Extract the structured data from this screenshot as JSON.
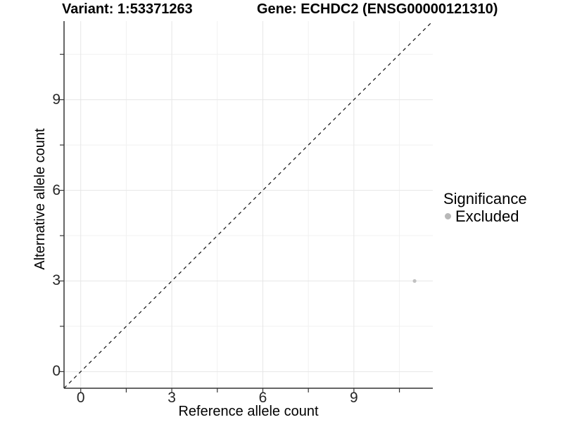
{
  "titles": {
    "variant": "Variant: 1:53371263",
    "gene": "Gene: ECHDC2 (ENSG00000121310)"
  },
  "chart_data": {
    "type": "scatter",
    "xlabel": "Reference allele count",
    "ylabel": "Alternative allele count",
    "xlim": [
      -0.55,
      11.6
    ],
    "ylim": [
      -0.55,
      11.6
    ],
    "x_major_ticks": [
      0,
      3,
      6,
      9
    ],
    "y_major_ticks": [
      0,
      3,
      6,
      9
    ],
    "x_minor_ticks": [
      1.5,
      4.5,
      7.5,
      10.5
    ],
    "y_minor_ticks": [
      1.5,
      4.5,
      7.5,
      10.5
    ],
    "grid": true,
    "reference_line": {
      "type": "identity",
      "style": "dashed",
      "color": "#111111"
    },
    "series": [
      {
        "name": "Excluded",
        "color": "#c2c2c2",
        "points": [
          {
            "x": 11,
            "y": 3
          }
        ]
      }
    ],
    "legend": {
      "title": "Significance",
      "position": "right",
      "entries": [
        {
          "label": "Excluded",
          "color": "#b8b8b8"
        }
      ]
    },
    "colors": {
      "major_grid": "#e6e6e6",
      "minor_grid": "#f1f1f1",
      "axis_line": "#333333",
      "tick_mark": "#333333",
      "tick_label": "#262626"
    }
  }
}
